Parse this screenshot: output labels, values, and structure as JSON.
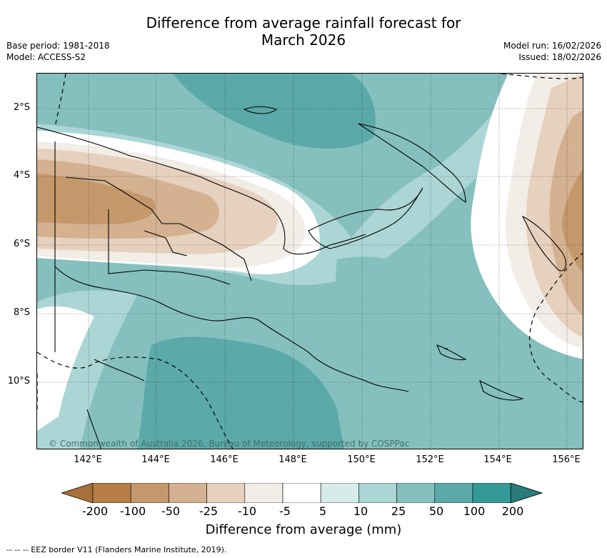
{
  "title": {
    "line1": "Difference from average rainfall forecast for",
    "line2": "March 2026"
  },
  "meta": {
    "base_period": "Base period: 1981-2018",
    "model": "Model: ACCESS-S2",
    "model_run": "Model run: 16/02/2026",
    "issued": "Issued: 18/02/2026"
  },
  "map": {
    "lat_labels": [
      "2°S",
      "4°S",
      "6°S",
      "8°S",
      "10°S"
    ],
    "lon_labels": [
      "142°E",
      "144°E",
      "146°E",
      "148°E",
      "150°E",
      "152°E",
      "154°E",
      "156°E"
    ],
    "copyright": "© Commonwealth of Australia 2026, Bureau of Meteorology, supported by COSPPac"
  },
  "colorbar": {
    "labels": [
      "-200",
      "-100",
      "-50",
      "-25",
      "-10",
      "-5",
      "5",
      "10",
      "25",
      "50",
      "100",
      "200"
    ],
    "colors": [
      "#a6713a",
      "#b67d45",
      "#c4986b",
      "#d4b190",
      "#e6d0be",
      "#f2ede6",
      "#ffffff",
      "#d7ebea",
      "#acd6d5",
      "#85c0bf",
      "#5ba9a8",
      "#339a97",
      "#2a7b79"
    ],
    "title": "Difference from average (mm)"
  },
  "legend": {
    "eez": "--  --  -- EEZ border V11 (Flanders Marine Institute, 2019)."
  }
}
